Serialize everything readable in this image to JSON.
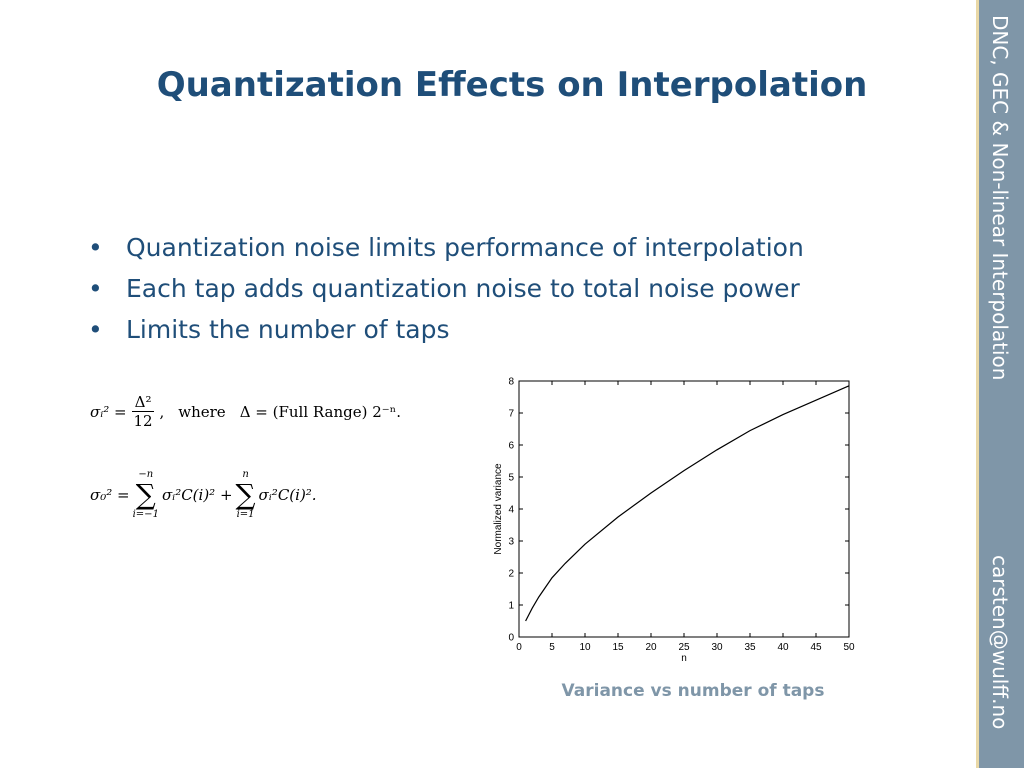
{
  "slide": {
    "title": "Quantization Effects on Interpolation",
    "bullets": [
      "Quantization noise limits performance of interpolation",
      "Each tap adds quantization noise to total noise power",
      "Limits the number of taps"
    ],
    "bullet_symbol": "•",
    "sidebar": {
      "title": "DNC, GEC & Non-linear Interpolation",
      "email": "carsten@wulff.no"
    },
    "caption": "Variance vs number of taps"
  },
  "formulas": {
    "eq1": {
      "lhs": "σᵢ² =",
      "frac_num": "Δ²",
      "frac_den": "12",
      "sep": ",",
      "where": "where",
      "rhs": "Δ = (Full Range) 2⁻ⁿ."
    },
    "eq2": {
      "lhs": "σ₀² =",
      "sum1_top": "−n",
      "sum1_bottom": "i=−1",
      "term1": "σᵢ²C(i)² +",
      "sum2_top": "n",
      "sum2_bottom": "i=1",
      "term2": "σᵢ²C(i)²."
    }
  },
  "chart_data": {
    "type": "line",
    "xlabel": "n",
    "ylabel": "Normalized variance",
    "xlim": [
      0,
      50
    ],
    "ylim": [
      0,
      8
    ],
    "xticks": [
      0,
      5,
      10,
      15,
      20,
      25,
      30,
      35,
      40,
      45,
      50
    ],
    "yticks": [
      0,
      1,
      2,
      3,
      4,
      5,
      6,
      7,
      8
    ],
    "grid": false,
    "series": [
      {
        "x": [
          1,
          2,
          3,
          4,
          5,
          7,
          10,
          15,
          20,
          25,
          30,
          35,
          40,
          45,
          50
        ],
        "values": [
          0.5,
          0.9,
          1.25,
          1.55,
          1.85,
          2.3,
          2.9,
          3.75,
          4.5,
          5.2,
          5.85,
          6.45,
          6.95,
          7.4,
          7.85
        ]
      }
    ],
    "line_color": "#000000"
  }
}
